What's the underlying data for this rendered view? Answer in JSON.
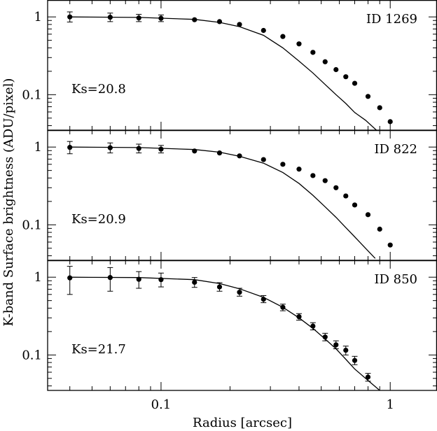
{
  "chart_data": {
    "type": "scatter",
    "ylabel": "K-band Surface brightness (ADU/pixel)",
    "xlabel": "Radius [arcsec]",
    "xscale": "log",
    "yscale": "log",
    "xlim": [
      0.032,
      1.6
    ],
    "ylim": [
      0.035,
      1.65
    ],
    "x_tick_labels": [
      {
        "value": 0.1,
        "label": "0.1"
      },
      {
        "value": 1,
        "label": "1"
      }
    ],
    "y_tick_labels": [
      {
        "value": 1,
        "label": "1"
      },
      {
        "value": 0.1,
        "label": "0.1"
      }
    ],
    "panels": [
      {
        "id_label": "ID  1269",
        "mag_label": "Ks=20.8",
        "points": [
          {
            "x": 0.04,
            "y": 1.0,
            "lo": 0.86,
            "hi": 1.16
          },
          {
            "x": 0.06,
            "y": 0.99,
            "lo": 0.87,
            "hi": 1.12
          },
          {
            "x": 0.08,
            "y": 0.97,
            "lo": 0.87,
            "hi": 1.08
          },
          {
            "x": 0.1,
            "y": 0.96,
            "lo": 0.87,
            "hi": 1.06
          },
          {
            "x": 0.14,
            "y": 0.92,
            "lo": 0.87,
            "hi": 0.97
          },
          {
            "x": 0.18,
            "y": 0.87,
            "lo": 0.83,
            "hi": 0.91
          },
          {
            "x": 0.22,
            "y": 0.8,
            "lo": 0.76,
            "hi": 0.84
          },
          {
            "x": 0.28,
            "y": 0.67,
            "lo": 0.64,
            "hi": 0.7
          },
          {
            "x": 0.34,
            "y": 0.56,
            "lo": 0.54,
            "hi": 0.58
          },
          {
            "x": 0.4,
            "y": 0.45,
            "lo": 0.43,
            "hi": 0.47
          },
          {
            "x": 0.46,
            "y": 0.35,
            "lo": 0.34,
            "hi": 0.36
          },
          {
            "x": 0.52,
            "y": 0.265,
            "lo": 0.255,
            "hi": 0.275
          },
          {
            "x": 0.58,
            "y": 0.21,
            "lo": 0.2,
            "hi": 0.22
          },
          {
            "x": 0.64,
            "y": 0.17,
            "lo": 0.163,
            "hi": 0.177
          },
          {
            "x": 0.7,
            "y": 0.14,
            "lo": 0.134,
            "hi": 0.146
          },
          {
            "x": 0.8,
            "y": 0.095,
            "lo": 0.091,
            "hi": 0.099
          },
          {
            "x": 0.9,
            "y": 0.068,
            "lo": 0.065,
            "hi": 0.071
          },
          {
            "x": 1.0,
            "y": 0.045,
            "lo": 0.042,
            "hi": 0.048
          }
        ],
        "model": [
          [
            0.04,
            1.0
          ],
          [
            0.08,
            0.985
          ],
          [
            0.14,
            0.93
          ],
          [
            0.18,
            0.85
          ],
          [
            0.22,
            0.75
          ],
          [
            0.28,
            0.58
          ],
          [
            0.34,
            0.4
          ],
          [
            0.4,
            0.27
          ],
          [
            0.46,
            0.19
          ],
          [
            0.52,
            0.135
          ],
          [
            0.58,
            0.1
          ],
          [
            0.64,
            0.077
          ],
          [
            0.7,
            0.059
          ],
          [
            0.78,
            0.047
          ],
          [
            0.88,
            0.034
          ]
        ]
      },
      {
        "id_label": "ID  822",
        "mag_label": "Ks=20.9",
        "points": [
          {
            "x": 0.04,
            "y": 0.99,
            "lo": 0.82,
            "hi": 1.18
          },
          {
            "x": 0.06,
            "y": 0.98,
            "lo": 0.84,
            "hi": 1.13
          },
          {
            "x": 0.08,
            "y": 0.96,
            "lo": 0.84,
            "hi": 1.09
          },
          {
            "x": 0.1,
            "y": 0.94,
            "lo": 0.84,
            "hi": 1.05
          },
          {
            "x": 0.14,
            "y": 0.89,
            "lo": 0.83,
            "hi": 0.95
          },
          {
            "x": 0.18,
            "y": 0.84,
            "lo": 0.79,
            "hi": 0.89
          },
          {
            "x": 0.22,
            "y": 0.77,
            "lo": 0.72,
            "hi": 0.82
          },
          {
            "x": 0.28,
            "y": 0.69,
            "lo": 0.66,
            "hi": 0.72
          },
          {
            "x": 0.34,
            "y": 0.6,
            "lo": 0.58,
            "hi": 0.62
          },
          {
            "x": 0.4,
            "y": 0.52,
            "lo": 0.5,
            "hi": 0.54
          },
          {
            "x": 0.46,
            "y": 0.43,
            "lo": 0.41,
            "hi": 0.45
          },
          {
            "x": 0.52,
            "y": 0.37,
            "lo": 0.355,
            "hi": 0.385
          },
          {
            "x": 0.58,
            "y": 0.3,
            "lo": 0.288,
            "hi": 0.312
          },
          {
            "x": 0.64,
            "y": 0.235,
            "lo": 0.226,
            "hi": 0.244
          },
          {
            "x": 0.7,
            "y": 0.18,
            "lo": 0.173,
            "hi": 0.187
          },
          {
            "x": 0.8,
            "y": 0.135,
            "lo": 0.13,
            "hi": 0.14
          },
          {
            "x": 0.9,
            "y": 0.088,
            "lo": 0.084,
            "hi": 0.092
          },
          {
            "x": 1.0,
            "y": 0.055,
            "lo": 0.052,
            "hi": 0.058
          }
        ],
        "model": [
          [
            0.04,
            1.0
          ],
          [
            0.08,
            0.985
          ],
          [
            0.14,
            0.93
          ],
          [
            0.18,
            0.86
          ],
          [
            0.22,
            0.76
          ],
          [
            0.28,
            0.62
          ],
          [
            0.34,
            0.47
          ],
          [
            0.4,
            0.34
          ],
          [
            0.46,
            0.24
          ],
          [
            0.52,
            0.17
          ],
          [
            0.58,
            0.125
          ],
          [
            0.64,
            0.092
          ],
          [
            0.7,
            0.07
          ],
          [
            0.78,
            0.05
          ],
          [
            0.86,
            0.037
          ]
        ]
      },
      {
        "id_label": "ID  850",
        "mag_label": "Ks=21.7",
        "points": [
          {
            "x": 0.04,
            "y": 0.98,
            "lo": 0.6,
            "hi": 1.38
          },
          {
            "x": 0.06,
            "y": 0.99,
            "lo": 0.66,
            "hi": 1.33
          },
          {
            "x": 0.08,
            "y": 0.94,
            "lo": 0.72,
            "hi": 1.18
          },
          {
            "x": 0.1,
            "y": 0.93,
            "lo": 0.75,
            "hi": 1.13
          },
          {
            "x": 0.14,
            "y": 0.86,
            "lo": 0.74,
            "hi": 0.99
          },
          {
            "x": 0.18,
            "y": 0.75,
            "lo": 0.66,
            "hi": 0.85
          },
          {
            "x": 0.22,
            "y": 0.64,
            "lo": 0.57,
            "hi": 0.72
          },
          {
            "x": 0.28,
            "y": 0.52,
            "lo": 0.47,
            "hi": 0.58
          },
          {
            "x": 0.34,
            "y": 0.41,
            "lo": 0.37,
            "hi": 0.45
          },
          {
            "x": 0.4,
            "y": 0.31,
            "lo": 0.28,
            "hi": 0.34
          },
          {
            "x": 0.46,
            "y": 0.235,
            "lo": 0.21,
            "hi": 0.26
          },
          {
            "x": 0.52,
            "y": 0.17,
            "lo": 0.152,
            "hi": 0.19
          },
          {
            "x": 0.58,
            "y": 0.135,
            "lo": 0.12,
            "hi": 0.152
          },
          {
            "x": 0.64,
            "y": 0.115,
            "lo": 0.1,
            "hi": 0.13
          },
          {
            "x": 0.7,
            "y": 0.085,
            "lo": 0.075,
            "hi": 0.096
          },
          {
            "x": 0.8,
            "y": 0.052,
            "lo": 0.046,
            "hi": 0.058
          }
        ],
        "model": [
          [
            0.04,
            1.0
          ],
          [
            0.08,
            0.99
          ],
          [
            0.14,
            0.93
          ],
          [
            0.18,
            0.83
          ],
          [
            0.22,
            0.71
          ],
          [
            0.28,
            0.55
          ],
          [
            0.34,
            0.41
          ],
          [
            0.4,
            0.3
          ],
          [
            0.46,
            0.22
          ],
          [
            0.52,
            0.16
          ],
          [
            0.58,
            0.12
          ],
          [
            0.64,
            0.088
          ],
          [
            0.7,
            0.066
          ],
          [
            0.8,
            0.047
          ],
          [
            0.9,
            0.035
          ]
        ]
      }
    ]
  }
}
